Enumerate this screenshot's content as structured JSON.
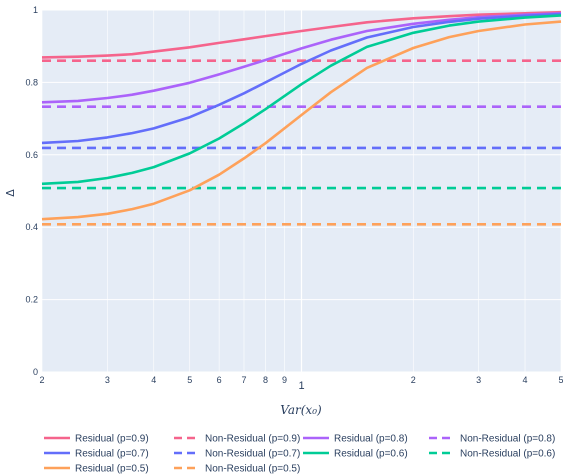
{
  "chart_data": {
    "type": "line",
    "title": "",
    "xlabel": "Var(x₀)",
    "ylabel": "Δ",
    "x_scale": "log",
    "xlim": [
      0.2,
      5
    ],
    "ylim": [
      0,
      1
    ],
    "grid": true,
    "legend_placement": "bottom",
    "x_ticks": [
      {
        "value": 0.2,
        "label": "2"
      },
      {
        "value": 0.3,
        "label": "3"
      },
      {
        "value": 0.4,
        "label": "4"
      },
      {
        "value": 0.5,
        "label": "5"
      },
      {
        "value": 0.6,
        "label": "6"
      },
      {
        "value": 0.7,
        "label": "7"
      },
      {
        "value": 0.8,
        "label": "8"
      },
      {
        "value": 0.9,
        "label": "9"
      },
      {
        "value": 1,
        "label": "1"
      },
      {
        "value": 2,
        "label": "2"
      },
      {
        "value": 3,
        "label": "3"
      },
      {
        "value": 4,
        "label": "4"
      },
      {
        "value": 5,
        "label": "5"
      }
    ],
    "y_ticks": [
      {
        "value": 0,
        "label": "0"
      },
      {
        "value": 0.2,
        "label": "0.2"
      },
      {
        "value": 0.4,
        "label": "0.4"
      },
      {
        "value": 0.6,
        "label": "0.6"
      },
      {
        "value": 0.8,
        "label": "0.8"
      },
      {
        "value": 1,
        "label": "1"
      }
    ],
    "x": [
      0.2,
      0.25,
      0.3,
      0.35,
      0.4,
      0.5,
      0.6,
      0.7,
      0.8,
      1.0,
      1.2,
      1.5,
      2.0,
      2.5,
      3.0,
      4.0,
      5.0
    ],
    "series": [
      {
        "name": "Residual (p=0.9)",
        "color": "#f5648c",
        "dash": false,
        "values": [
          0.869,
          0.871,
          0.874,
          0.878,
          0.885,
          0.897,
          0.909,
          0.919,
          0.928,
          0.942,
          0.953,
          0.966,
          0.977,
          0.983,
          0.987,
          0.991,
          0.994
        ]
      },
      {
        "name": "Non-Residual (p=0.9)",
        "color": "#f5648c",
        "dash": true,
        "values": [
          0.86,
          0.86,
          0.86,
          0.86,
          0.86,
          0.86,
          0.86,
          0.86,
          0.86,
          0.86,
          0.86,
          0.86,
          0.86,
          0.86,
          0.86,
          0.86,
          0.86
        ]
      },
      {
        "name": "Residual (p=0.8)",
        "color": "#ab63fa",
        "dash": false,
        "values": [
          0.745,
          0.749,
          0.757,
          0.766,
          0.777,
          0.799,
          0.822,
          0.843,
          0.862,
          0.894,
          0.918,
          0.942,
          0.962,
          0.973,
          0.98,
          0.987,
          0.991
        ]
      },
      {
        "name": "Non-Residual (p=0.8)",
        "color": "#ab63fa",
        "dash": true,
        "values": [
          0.733,
          0.733,
          0.733,
          0.733,
          0.733,
          0.733,
          0.733,
          0.733,
          0.733,
          0.733,
          0.733,
          0.733,
          0.733,
          0.733,
          0.733,
          0.733,
          0.733
        ]
      },
      {
        "name": "Residual (p=0.7)",
        "color": "#636efa",
        "dash": false,
        "values": [
          0.633,
          0.638,
          0.648,
          0.66,
          0.673,
          0.704,
          0.738,
          0.77,
          0.8,
          0.851,
          0.888,
          0.924,
          0.953,
          0.967,
          0.976,
          0.984,
          0.989
        ]
      },
      {
        "name": "Non-Residual (p=0.7)",
        "color": "#636efa",
        "dash": true,
        "values": [
          0.619,
          0.619,
          0.619,
          0.619,
          0.619,
          0.619,
          0.619,
          0.619,
          0.619,
          0.619,
          0.619,
          0.619,
          0.619,
          0.619,
          0.619,
          0.619,
          0.619
        ]
      },
      {
        "name": "Residual (p=0.6)",
        "color": "#00cc96",
        "dash": false,
        "values": [
          0.52,
          0.525,
          0.536,
          0.55,
          0.566,
          0.604,
          0.645,
          0.687,
          0.726,
          0.795,
          0.846,
          0.898,
          0.937,
          0.957,
          0.968,
          0.979,
          0.985
        ]
      },
      {
        "name": "Non-Residual (p=0.6)",
        "color": "#00cc96",
        "dash": true,
        "values": [
          0.508,
          0.508,
          0.508,
          0.508,
          0.508,
          0.508,
          0.508,
          0.508,
          0.508,
          0.508,
          0.508,
          0.508,
          0.508,
          0.508,
          0.508,
          0.508,
          0.508
        ]
      },
      {
        "name": "Residual (p=0.5)",
        "color": "#fea15a",
        "dash": false,
        "values": [
          0.422,
          0.428,
          0.437,
          0.45,
          0.465,
          0.502,
          0.545,
          0.59,
          0.632,
          0.71,
          0.773,
          0.84,
          0.895,
          0.925,
          0.942,
          0.96,
          0.968
        ]
      },
      {
        "name": "Non-Residual (p=0.5)",
        "color": "#fea15a",
        "dash": true,
        "values": [
          0.408,
          0.408,
          0.408,
          0.408,
          0.408,
          0.408,
          0.408,
          0.408,
          0.408,
          0.408,
          0.408,
          0.408,
          0.408,
          0.408,
          0.408,
          0.408,
          0.408
        ]
      }
    ]
  },
  "colors": {
    "plot_bg": "#e5ecf6",
    "grid": "#ffffff",
    "text": "#2a3f5f"
  }
}
